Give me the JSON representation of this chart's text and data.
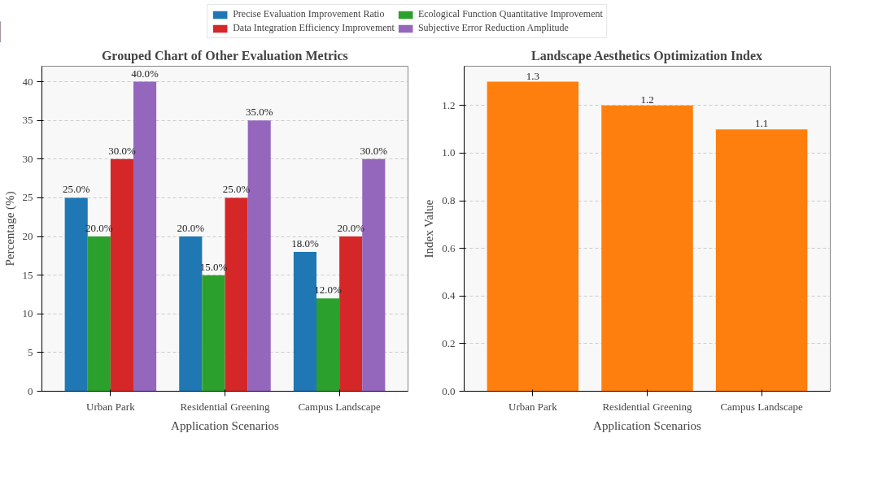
{
  "chart_data": [
    {
      "type": "bar",
      "title": "Grouped Chart of Other Evaluation Metrics",
      "xlabel": "Application Scenarios",
      "ylabel": "Percentage (%)",
      "categories": [
        "Urban Park",
        "Residential Greening",
        "Campus Landscape"
      ],
      "series": [
        {
          "name": "Precise Evaluation Improvement Ratio",
          "color": "#1f77b4",
          "values": [
            25,
            20,
            18
          ],
          "value_labels": [
            "25.0%",
            "20.0%",
            "18.0%"
          ]
        },
        {
          "name": "Ecological Function Quantitative Improvement",
          "color": "#2ca02c",
          "values": [
            20,
            15,
            12
          ],
          "value_labels": [
            "20.0%",
            "15.0%",
            "12.0%"
          ]
        },
        {
          "name": "Data Integration Efficiency Improvement",
          "color": "#d62728",
          "values": [
            30,
            25,
            20
          ],
          "value_labels": [
            "30.0%",
            "25.0%",
            "20.0%"
          ]
        },
        {
          "name": "Subjective Error Reduction Amplitude",
          "color": "#9467bd",
          "values": [
            40,
            35,
            30
          ],
          "value_labels": [
            "40.0%",
            "35.0%",
            "30.0%"
          ]
        }
      ],
      "ylim": [
        0,
        42
      ],
      "yticks": [
        0,
        5,
        10,
        15,
        20,
        25,
        30,
        35,
        40
      ],
      "grid": "y",
      "legend": "top"
    },
    {
      "type": "bar",
      "title": "Landscape Aesthetics Optimization Index",
      "xlabel": "Application Scenarios",
      "ylabel": "Index Value",
      "categories": [
        "Urban Park",
        "Residential Greening",
        "Campus Landscape"
      ],
      "values": [
        1.3,
        1.2,
        1.1
      ],
      "color": "#ff7f0e",
      "data_labels": true,
      "ylim": [
        0,
        1.365
      ],
      "yticks": [
        {
          "value": 0,
          "label": "0.0"
        },
        {
          "value": 0.2,
          "label": "0.2"
        },
        {
          "value": 0.4,
          "label": "0.4"
        },
        {
          "value": 0.6,
          "label": "0.6"
        },
        {
          "value": 0.8,
          "label": "0.8"
        },
        {
          "value": 1.0,
          "label": "1.0"
        },
        {
          "value": 1.2,
          "label": "1.2"
        }
      ],
      "grid": "y"
    }
  ]
}
